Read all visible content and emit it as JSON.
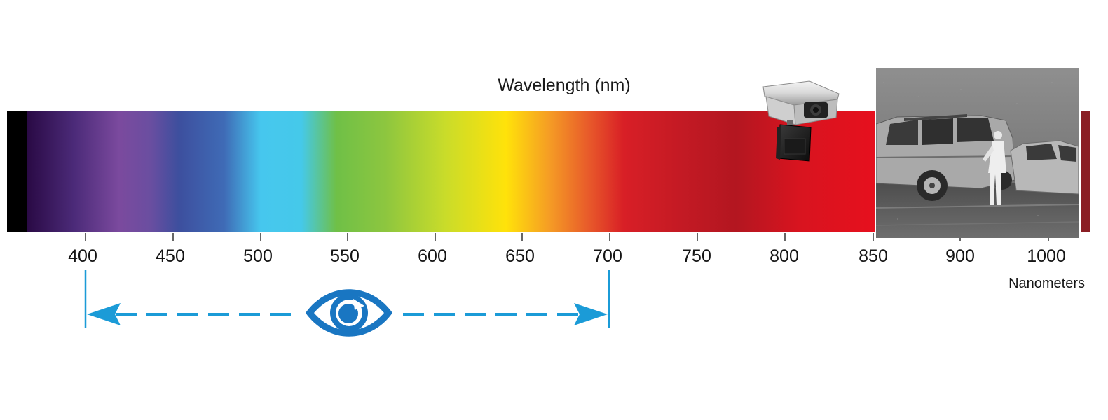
{
  "title": "Wavelength (nm)",
  "axis": {
    "unit_label": "Nanometers",
    "ticks": [
      "400",
      "450",
      "500",
      "550",
      "600",
      "650",
      "700",
      "750",
      "800",
      "850",
      "900",
      "1000"
    ]
  },
  "visible_range": {
    "start": 400,
    "end": 700,
    "icon": "eye-icon",
    "color": "#1b8fd1"
  },
  "colors": {
    "ir_camera": "#e0e0e0",
    "infrared_band": "#e6101e"
  },
  "icons": {
    "camera": "security-camera-icon",
    "photo": "infrared-photo"
  }
}
